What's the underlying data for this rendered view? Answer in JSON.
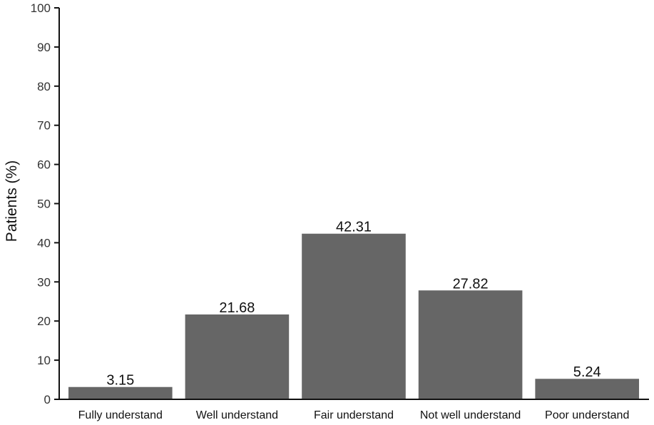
{
  "chart_data": {
    "type": "bar",
    "categories": [
      "Fully understand",
      "Well understand",
      "Fair understand",
      "Not well understand",
      "Poor understand"
    ],
    "values": [
      3.15,
      21.68,
      42.31,
      27.82,
      5.24
    ],
    "value_labels": [
      "3.15",
      "21.68",
      "42.31",
      "27.82",
      "5.24"
    ],
    "title": "",
    "xlabel": "",
    "ylabel": "Patients (%)",
    "ylim": [
      0,
      100
    ],
    "yticks": [
      "0",
      "10",
      "20",
      "30",
      "40",
      "50",
      "60",
      "70",
      "80",
      "90",
      "100"
    ],
    "grid": false,
    "bar_color": "#666666"
  }
}
